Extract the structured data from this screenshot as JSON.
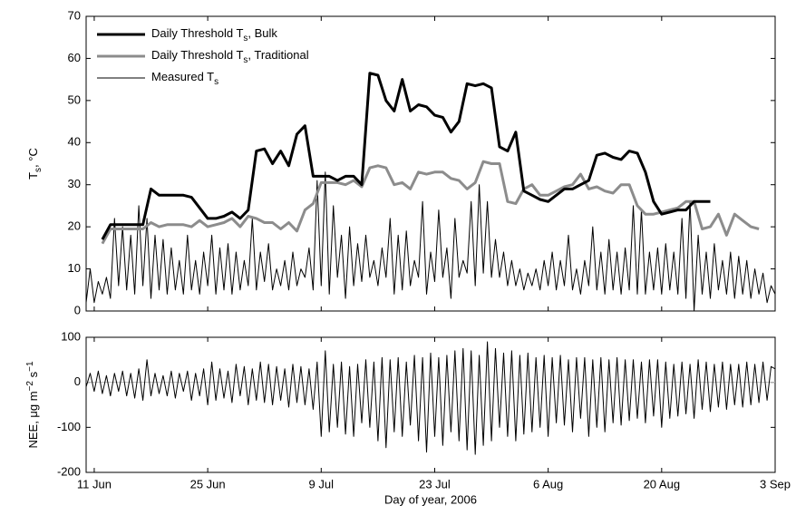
{
  "chart_data": [
    {
      "type": "line",
      "ylabel": [
        "T",
        "s",
        ", °C"
      ],
      "ylim": [
        0,
        70
      ],
      "yticks": [
        0,
        10,
        20,
        30,
        40,
        50,
        60,
        70
      ],
      "xlim": [
        161,
        246
      ],
      "legend": "upper-left",
      "series": [
        {
          "name": [
            "Daily Threshold T",
            "s",
            ", Bulk"
          ],
          "color": "#000000",
          "width": 3,
          "x": [
            163,
            164,
            165,
            166,
            167,
            168,
            169,
            170,
            171,
            172,
            173,
            174,
            175,
            176,
            177,
            178,
            179,
            180,
            181,
            182,
            183,
            184,
            185,
            186,
            187,
            188,
            189,
            190,
            191,
            192,
            193,
            194,
            195,
            196,
            197,
            198,
            199,
            200,
            201,
            202,
            203,
            204,
            205,
            206,
            207,
            208,
            209,
            210,
            211,
            212,
            213,
            214,
            215,
            216,
            217,
            218,
            219,
            220,
            221,
            222,
            223,
            224,
            225,
            226,
            227,
            228,
            229,
            230,
            231,
            232,
            233,
            234,
            235,
            236,
            237,
            238
          ],
          "values": [
            17,
            20.5,
            20.5,
            20.5,
            20.5,
            20.5,
            29,
            27.5,
            27.5,
            27.5,
            27.5,
            27,
            24.5,
            22,
            22,
            22.5,
            23.5,
            22,
            24,
            38,
            38.5,
            35,
            38,
            34.5,
            42,
            44,
            32,
            32,
            32,
            31,
            32,
            32,
            30,
            56.5,
            56,
            50,
            47.5,
            55,
            47.5,
            49,
            48.5,
            46.5,
            46,
            42.5,
            45,
            54,
            53.5,
            54,
            53,
            39,
            38,
            42.5,
            28.5,
            27.5,
            26.5,
            26,
            27.5,
            29,
            29,
            30,
            31,
            37,
            37.5,
            36.5,
            36,
            38,
            37.5,
            33,
            26,
            23,
            23.5,
            24,
            24,
            26,
            26,
            26
          ]
        },
        {
          "name": [
            "Daily Threshold T",
            "s",
            ", Traditional"
          ],
          "color": "#8c8c8c",
          "width": 3,
          "x": [
            163,
            164,
            165,
            166,
            167,
            168,
            169,
            170,
            171,
            172,
            173,
            174,
            175,
            176,
            177,
            178,
            179,
            180,
            181,
            182,
            183,
            184,
            185,
            186,
            187,
            188,
            189,
            190,
            191,
            192,
            193,
            194,
            195,
            196,
            197,
            198,
            199,
            200,
            201,
            202,
            203,
            204,
            205,
            206,
            207,
            208,
            209,
            210,
            211,
            212,
            213,
            214,
            215,
            216,
            217,
            218,
            219,
            220,
            221,
            222,
            223,
            224,
            225,
            226,
            227,
            228,
            229,
            230,
            231,
            232,
            233,
            234,
            235,
            236,
            237,
            238,
            239,
            240,
            241,
            242,
            243,
            244
          ],
          "values": [
            16,
            19.5,
            19.5,
            19.5,
            19.5,
            19.5,
            21,
            20,
            20.5,
            20.5,
            20.5,
            20,
            21.5,
            20,
            20.5,
            21,
            22,
            20,
            22.5,
            22,
            21,
            21,
            19.5,
            21,
            19,
            24,
            25.5,
            30.5,
            30.5,
            30.5,
            30,
            31,
            29.5,
            34,
            34.5,
            34,
            30,
            30.5,
            29,
            33,
            32.5,
            33,
            33,
            31.5,
            31,
            29,
            30.5,
            35.5,
            35,
            35,
            26,
            25.5,
            29,
            30,
            27.5,
            27.5,
            28.5,
            29.5,
            30,
            32.5,
            29,
            29.5,
            28.5,
            28,
            30,
            30,
            25,
            23,
            23,
            23.5,
            24,
            24.5,
            26,
            26,
            19.5,
            20,
            23,
            18,
            23,
            21.5,
            20,
            19.5
          ]
        },
        {
          "name": [
            "Measured T",
            "s"
          ],
          "color": "#000000",
          "width": 1,
          "x": [
            161,
            161.5,
            162,
            162.5,
            163,
            163.5,
            164,
            164.5,
            165,
            165.5,
            166,
            166.5,
            167,
            167.5,
            168,
            168.5,
            169,
            169.5,
            170,
            170.5,
            171,
            171.5,
            172,
            172.5,
            173,
            173.5,
            174,
            174.5,
            175,
            175.5,
            176,
            176.5,
            177,
            177.5,
            178,
            178.5,
            179,
            179.5,
            180,
            180.5,
            181,
            181.5,
            182,
            182.5,
            183,
            183.5,
            184,
            184.5,
            185,
            185.5,
            186,
            186.5,
            187,
            187.5,
            188,
            188.5,
            189,
            189.5,
            190,
            190.5,
            191,
            191.5,
            192,
            192.5,
            193,
            193.5,
            194,
            194.5,
            195,
            195.5,
            196,
            196.5,
            197,
            197.5,
            198,
            198.5,
            199,
            199.5,
            200,
            200.5,
            201,
            201.5,
            202,
            202.5,
            203,
            203.5,
            204,
            204.5,
            205,
            205.5,
            206,
            206.5,
            207,
            207.5,
            208,
            208.5,
            209,
            209.5,
            210,
            210.5,
            211,
            211.5,
            212,
            212.5,
            213,
            213.5,
            214,
            214.5,
            215,
            215.5,
            216,
            216.5,
            217,
            217.5,
            218,
            218.5,
            219,
            219.5,
            220,
            220.5,
            221,
            221.5,
            222,
            222.5,
            223,
            223.5,
            224,
            224.5,
            225,
            225.5,
            226,
            226.5,
            227,
            227.5,
            228,
            228.5,
            229,
            229.5,
            230,
            230.5,
            231,
            231.5,
            232,
            232.5,
            233,
            233.5,
            234,
            234.5,
            235,
            235.5,
            236,
            236.5,
            237,
            237.5,
            238,
            238.5,
            239,
            239.5,
            240,
            240.5,
            241,
            241.5,
            242,
            242.5,
            243,
            243.5,
            244,
            244.5,
            245,
            245.5,
            246
          ],
          "values": [
            2,
            10,
            2,
            7,
            4,
            8,
            3,
            22,
            6,
            20,
            5,
            18,
            4,
            25,
            6,
            22,
            3,
            18,
            5,
            17,
            4,
            15,
            5,
            12,
            4,
            18,
            5,
            12,
            4,
            14,
            6,
            18,
            4,
            15,
            5,
            16,
            4,
            14,
            5,
            12,
            6,
            22,
            5,
            14,
            7,
            16,
            5,
            10,
            6,
            12,
            5,
            14,
            6,
            10,
            8,
            15,
            5,
            31,
            6,
            33,
            4,
            25,
            8,
            18,
            3,
            20,
            6,
            16,
            7,
            18,
            8,
            12,
            6,
            15,
            8,
            22,
            4,
            18,
            5,
            19,
            6,
            12,
            8,
            26,
            4,
            14,
            7,
            24,
            8,
            15,
            3,
            22,
            8,
            12,
            9,
            26,
            6,
            30,
            9,
            26,
            8,
            17,
            8,
            14,
            6,
            12,
            6,
            10,
            5,
            9,
            6,
            10,
            5,
            12,
            6,
            14,
            5,
            12,
            6,
            18,
            5,
            10,
            4,
            12,
            6,
            20,
            5,
            14,
            4,
            17,
            5,
            14,
            4,
            15,
            5,
            25,
            4,
            24,
            4,
            14,
            5,
            15,
            4,
            16,
            5,
            14,
            4,
            22,
            3,
            26,
            0,
            18,
            4,
            14,
            3,
            16,
            5,
            12,
            4,
            14,
            3,
            13,
            4,
            12,
            3,
            10,
            4,
            9,
            2,
            6,
            4
          ]
        }
      ]
    },
    {
      "type": "line",
      "ylabel": [
        "NEE, μg m",
        "−2",
        " s",
        "−1"
      ],
      "xlabel": "Day of year, 2006",
      "ylim": [
        -200,
        100
      ],
      "yticks": [
        -200,
        -100,
        0,
        100
      ],
      "zero_line": true,
      "xlim": [
        161,
        246
      ],
      "xticks": [
        {
          "value": 162,
          "label": "11 Jun"
        },
        {
          "value": 176,
          "label": "25 Jun"
        },
        {
          "value": 190,
          "label": "9 Jul"
        },
        {
          "value": 204,
          "label": "23 Jul"
        },
        {
          "value": 218,
          "label": "6 Aug"
        },
        {
          "value": 232,
          "label": "20 Aug"
        },
        {
          "value": 246,
          "label": "3 Sep"
        }
      ],
      "series": [
        {
          "color": "#000000",
          "width": 1,
          "x": [
            161,
            161.5,
            162,
            162.5,
            163,
            163.5,
            164,
            164.5,
            165,
            165.5,
            166,
            166.5,
            167,
            167.5,
            168,
            168.5,
            169,
            169.5,
            170,
            170.5,
            171,
            171.5,
            172,
            172.5,
            173,
            173.5,
            174,
            174.5,
            175,
            175.5,
            176,
            176.5,
            177,
            177.5,
            178,
            178.5,
            179,
            179.5,
            180,
            180.5,
            181,
            181.5,
            182,
            182.5,
            183,
            183.5,
            184,
            184.5,
            185,
            185.5,
            186,
            186.5,
            187,
            187.5,
            188,
            188.5,
            189,
            189.5,
            190,
            190.5,
            191,
            191.5,
            192,
            192.5,
            193,
            193.5,
            194,
            194.5,
            195,
            195.5,
            196,
            196.5,
            197,
            197.5,
            198,
            198.5,
            199,
            199.5,
            200,
            200.5,
            201,
            201.5,
            202,
            202.5,
            203,
            203.5,
            204,
            204.5,
            205,
            205.5,
            206,
            206.5,
            207,
            207.5,
            208,
            208.5,
            209,
            209.5,
            210,
            210.5,
            211,
            211.5,
            212,
            212.5,
            213,
            213.5,
            214,
            214.5,
            215,
            215.5,
            216,
            216.5,
            217,
            217.5,
            218,
            218.5,
            219,
            219.5,
            220,
            220.5,
            221,
            221.5,
            222,
            222.5,
            223,
            223.5,
            224,
            224.5,
            225,
            225.5,
            226,
            226.5,
            227,
            227.5,
            228,
            228.5,
            229,
            229.5,
            230,
            230.5,
            231,
            231.5,
            232,
            232.5,
            233,
            233.5,
            234,
            234.5,
            235,
            235.5,
            236,
            236.5,
            237,
            237.5,
            238,
            238.5,
            239,
            239.5,
            240,
            240.5,
            241,
            241.5,
            242,
            242.5,
            243,
            243.5,
            244,
            244.5,
            245,
            245.5,
            246
          ],
          "values": [
            -10,
            20,
            -20,
            25,
            -25,
            15,
            -30,
            20,
            -20,
            25,
            -30,
            20,
            -35,
            30,
            -40,
            50,
            -30,
            20,
            -25,
            15,
            -30,
            25,
            -35,
            20,
            -20,
            25,
            -40,
            20,
            -30,
            30,
            -50,
            45,
            -40,
            30,
            -35,
            25,
            -45,
            40,
            -30,
            35,
            -50,
            30,
            -40,
            45,
            -45,
            40,
            -50,
            35,
            -40,
            30,
            -55,
            40,
            -45,
            35,
            -50,
            30,
            -60,
            45,
            -120,
            70,
            -110,
            40,
            -100,
            45,
            -115,
            35,
            -120,
            40,
            -90,
            50,
            -100,
            45,
            -130,
            55,
            -145,
            50,
            -110,
            55,
            -120,
            45,
            -95,
            60,
            -130,
            55,
            -155,
            65,
            -120,
            55,
            -140,
            60,
            -110,
            70,
            -130,
            75,
            -150,
            70,
            -160,
            60,
            -140,
            90,
            -130,
            75,
            -100,
            65,
            -120,
            70,
            -130,
            60,
            -115,
            65,
            -110,
            55,
            -100,
            60,
            -120,
            55,
            -90,
            60,
            -95,
            50,
            -110,
            55,
            -80,
            55,
            -120,
            50,
            -100,
            55,
            -110,
            50,
            -90,
            55,
            -95,
            50,
            -85,
            50,
            -80,
            45,
            -90,
            50,
            -75,
            50,
            -100,
            45,
            -80,
            40,
            -75,
            45,
            -70,
            40,
            -80,
            50,
            -60,
            45,
            -65,
            40,
            -55,
            45,
            -60,
            40,
            -50,
            40,
            -55,
            45,
            -50,
            40,
            -45,
            45,
            -40,
            35,
            30
          ]
        }
      ]
    }
  ]
}
